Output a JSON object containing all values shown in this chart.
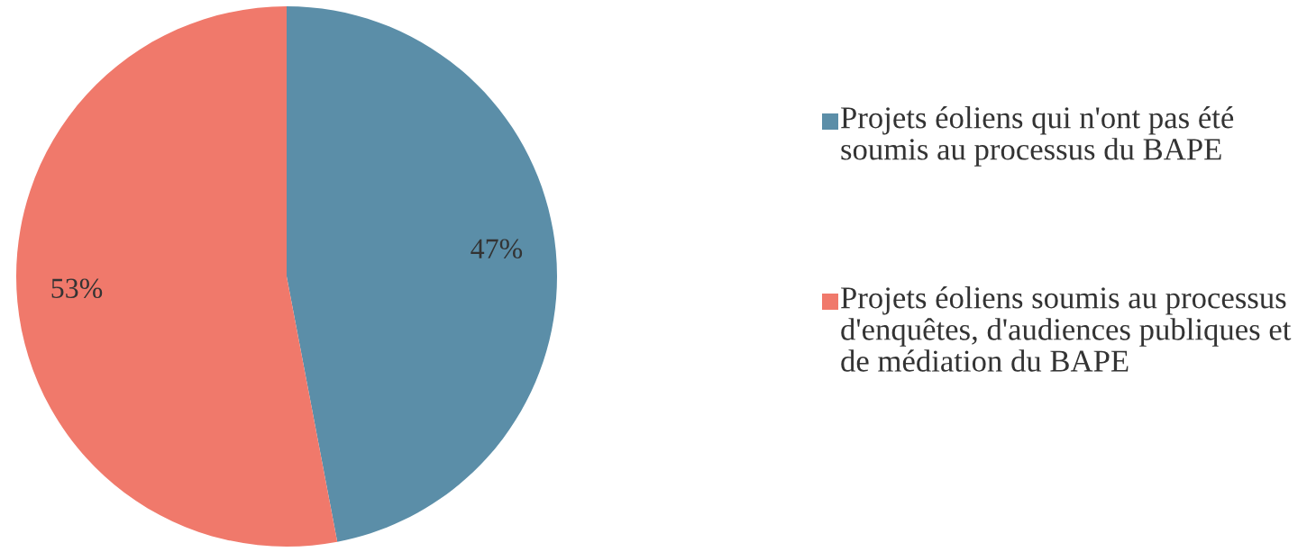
{
  "chart_data": {
    "type": "pie",
    "categories": [
      "Projets éoliens qui n'ont pas été soumis au processus du BAPE",
      "Projets éoliens soumis au processus d'enquêtes, d'audiences publiques et de médiation du BAPE"
    ],
    "values": [
      47,
      53
    ],
    "colors": [
      "#5b8ea8",
      "#f0796b"
    ],
    "value_labels": [
      "47%",
      "53%"
    ],
    "legend": "right"
  }
}
